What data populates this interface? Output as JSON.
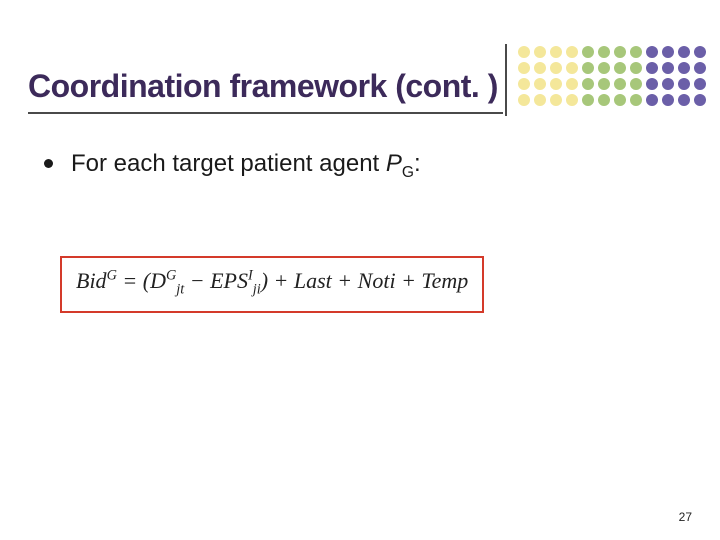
{
  "slide": {
    "title": "Coordination framework (cont. )",
    "title_color": "#3c2a5a",
    "title_fontsize": 32,
    "underline_color": "#4a4a4a",
    "divider_color": "#4a4a4a",
    "background_color": "#ffffff",
    "page_number": "27"
  },
  "bullet": {
    "prefix": "For each target patient agent ",
    "symbol_base": "P",
    "symbol_sub": "G",
    "suffix": ":",
    "bullet_color": "#1a1a1a",
    "text_color": "#1a1a1a",
    "fontsize": 24
  },
  "formula": {
    "lhs_base": "Bid",
    "lhs_sup": "G",
    "eq": " = (",
    "term1_base": "D",
    "term1_sup": "G",
    "term1_sub": "jt",
    "minus": " − ",
    "term2_base": "EPS",
    "term2_sup": "I",
    "term2_sub": "ji",
    "after_paren": ") + ",
    "term3": "Last",
    "plus2": " + ",
    "term4": "Noti",
    "plus3": " + ",
    "term5": "Temp",
    "border_color": "#d43a2a",
    "text_color": "#222222",
    "font": "Times New Roman",
    "fontsize": 22
  },
  "decor_dots": {
    "colors_grid": [
      [
        "#f4e79a",
        "#f4e79a",
        "#f4e79a",
        "#f4e79a",
        "#a7c77a",
        "#a7c77a",
        "#a7c77a",
        "#a7c77a",
        "#6b5fa8",
        "#6b5fa8",
        "#6b5fa8",
        "#6b5fa8"
      ],
      [
        "#f4e79a",
        "#f4e79a",
        "#f4e79a",
        "#f4e79a",
        "#a7c77a",
        "#a7c77a",
        "#a7c77a",
        "#a7c77a",
        "#6b5fa8",
        "#6b5fa8",
        "#6b5fa8",
        "#6b5fa8"
      ],
      [
        "#f4e79a",
        "#f4e79a",
        "#f4e79a",
        "#f4e79a",
        "#a7c77a",
        "#a7c77a",
        "#a7c77a",
        "#a7c77a",
        "#6b5fa8",
        "#6b5fa8",
        "#6b5fa8",
        "#6b5fa8"
      ],
      [
        "#f4e79a",
        "#f4e79a",
        "#f4e79a",
        "#f4e79a",
        "#a7c77a",
        "#a7c77a",
        "#a7c77a",
        "#a7c77a",
        "#6b5fa8",
        "#6b5fa8",
        "#6b5fa8",
        "#6b5fa8"
      ]
    ],
    "dot_size": 12,
    "gap": 4
  }
}
